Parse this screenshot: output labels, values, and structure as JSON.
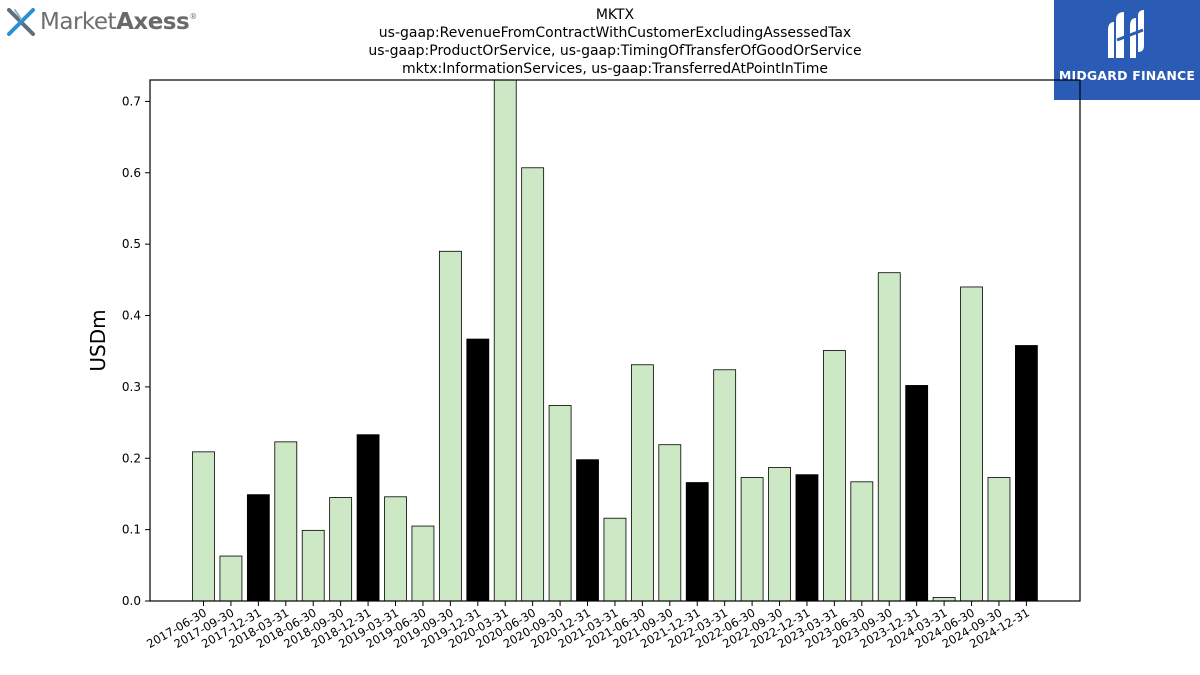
{
  "branding": {
    "left_logo_text_light": "Market",
    "left_logo_text_bold": "Axess",
    "left_logo_mark": "®",
    "right_logo_text": "MIDGARD FINANCE",
    "left_logo_icon": "x-mark-icon",
    "right_logo_icon": "mf-monogram-icon",
    "right_logo_bg": "#2a5bb5"
  },
  "chart_data": {
    "type": "bar",
    "title_lines": [
      "MKTX",
      "us-gaap:RevenueFromContractWithCustomerExcludingAssessedTax",
      "us-gaap:ProductOrService, us-gaap:TimingOfTransferOfGoodOrService",
      "mktx:InformationServices, us-gaap:TransferredAtPointInTime"
    ],
    "ylabel": "USDm",
    "xlabel": "",
    "ylim": [
      0,
      0.73
    ],
    "yticks": [
      "0.0",
      "0.1",
      "0.2",
      "0.3",
      "0.4",
      "0.5",
      "0.6",
      "0.7"
    ],
    "ytick_values": [
      0,
      0.1,
      0.2,
      0.3,
      0.4,
      0.5,
      0.6,
      0.7
    ],
    "grid": false,
    "colors": {
      "quarter": "#cce8c4",
      "year_end": "#000000",
      "edge": "#000000"
    },
    "categories": [
      "2017-06-30",
      "2017-09-30",
      "2017-12-31",
      "2018-03-31",
      "2018-06-30",
      "2018-09-30",
      "2018-12-31",
      "2019-03-31",
      "2019-06-30",
      "2019-09-30",
      "2019-12-31",
      "2020-03-31",
      "2020-06-30",
      "2020-09-30",
      "2020-12-31",
      "2021-03-31",
      "2021-06-30",
      "2021-09-30",
      "2021-12-31",
      "2022-03-31",
      "2022-06-30",
      "2022-09-30",
      "2022-12-31",
      "2023-03-31",
      "2023-06-30",
      "2023-09-30",
      "2023-12-31",
      "2024-03-31",
      "2024-06-30",
      "2024-09-30",
      "2024-12-31"
    ],
    "values": [
      0.209,
      0.063,
      0.149,
      0.223,
      0.099,
      0.145,
      0.233,
      0.146,
      0.105,
      0.49,
      0.367,
      0.737,
      0.607,
      0.274,
      0.198,
      0.116,
      0.331,
      0.219,
      0.166,
      0.324,
      0.173,
      0.187,
      0.177,
      0.351,
      0.167,
      0.46,
      0.302,
      0.005,
      0.44,
      0.173,
      0.358
    ],
    "highlight": [
      false,
      false,
      true,
      false,
      false,
      false,
      true,
      false,
      false,
      false,
      true,
      false,
      false,
      false,
      true,
      false,
      false,
      false,
      true,
      false,
      false,
      false,
      true,
      false,
      false,
      false,
      true,
      false,
      false,
      false,
      true
    ]
  }
}
